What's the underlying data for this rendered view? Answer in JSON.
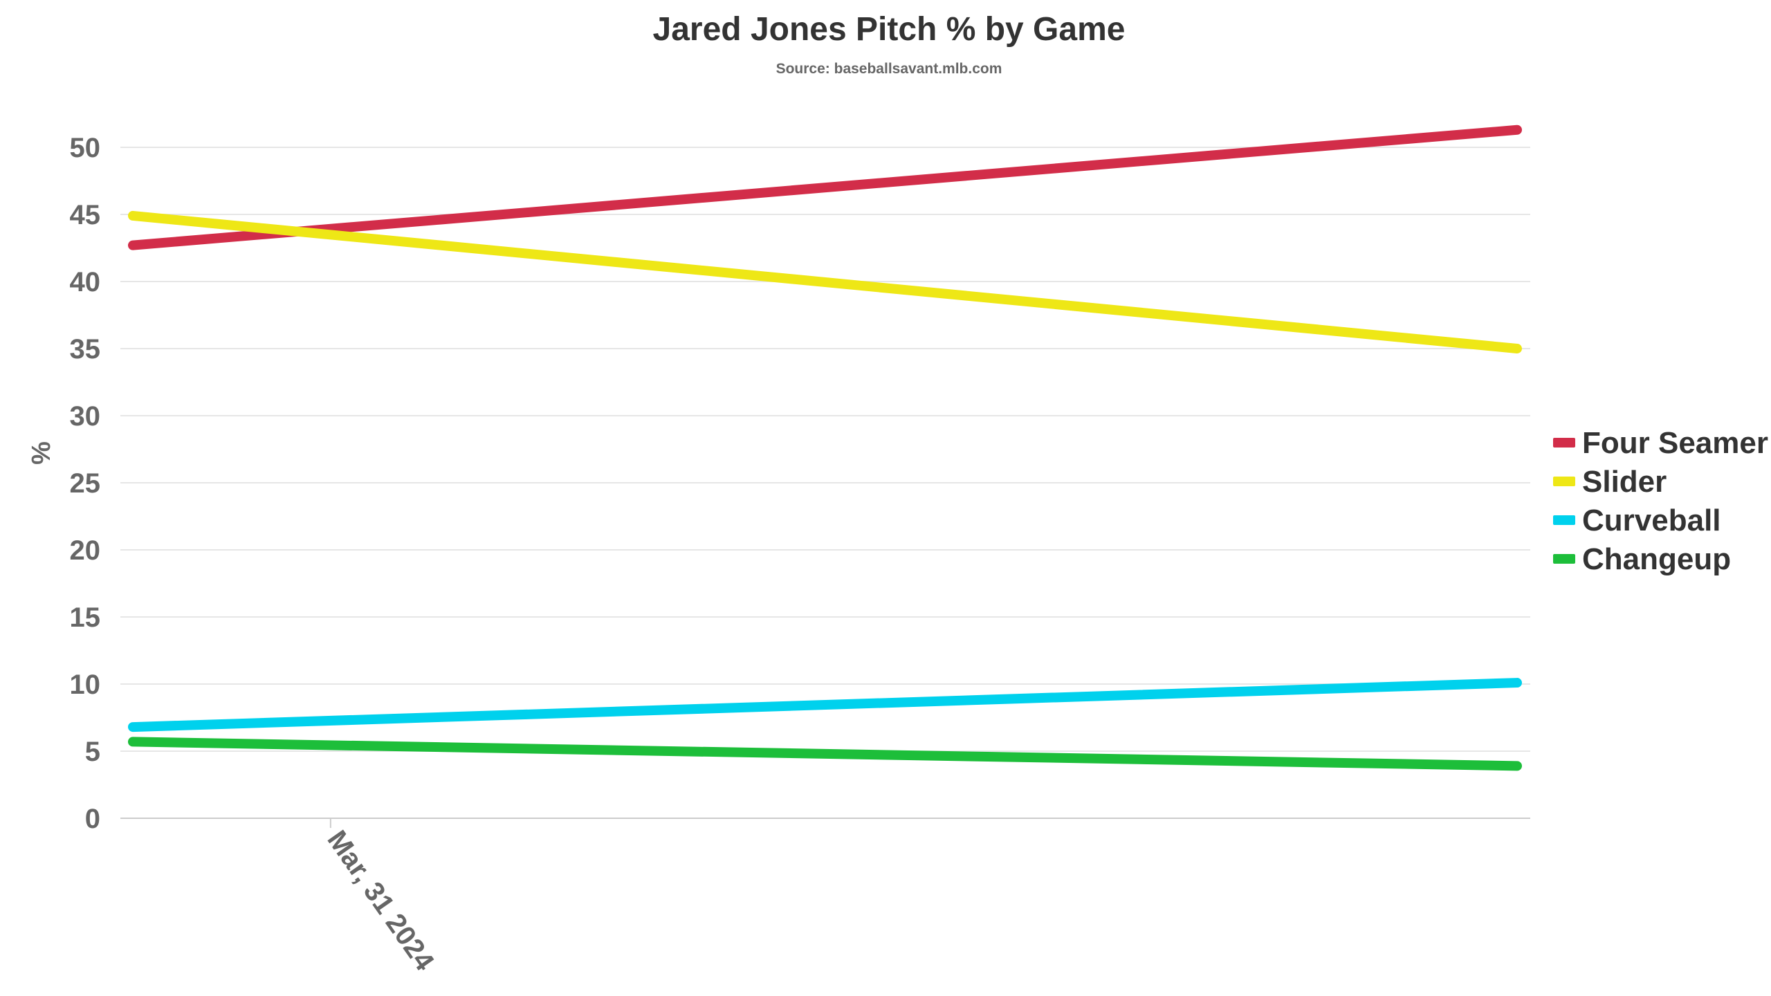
{
  "chart_data": {
    "type": "line",
    "title": "Jared Jones Pitch % by Game",
    "subtitle": "Source: baseballsavant.mlb.com",
    "ylabel": "%",
    "xlabel": "",
    "x": [
      "2024-03-30",
      "2024-04-06"
    ],
    "x_ticks": [
      {
        "date": "2024-03-31",
        "label": "Mar, 31 2024"
      }
    ],
    "ylim": [
      0,
      52
    ],
    "y_ticks": [
      0,
      5,
      10,
      15,
      20,
      25,
      30,
      35,
      40,
      45,
      50
    ],
    "grid": true,
    "legend_position": "right",
    "series": [
      {
        "name": "Four Seamer",
        "color": "#d22d49",
        "values": [
          42.7,
          51.3
        ]
      },
      {
        "name": "Slider",
        "color": "#eee716",
        "values": [
          44.9,
          35.0
        ]
      },
      {
        "name": "Curveball",
        "color": "#00d1ed",
        "values": [
          6.8,
          10.1
        ]
      },
      {
        "name": "Changeup",
        "color": "#1dbe3a",
        "values": [
          5.7,
          3.9
        ]
      }
    ]
  }
}
